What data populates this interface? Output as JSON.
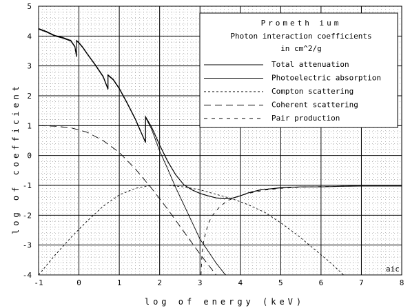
{
  "chart_data": {
    "type": "line",
    "title": "Prometh ium",
    "subtitle_lines": [
      "Photon interaction coefficients",
      "in cm^2/g"
    ],
    "xlabel": "log of energy (keV)",
    "ylabel": "log of coefficient",
    "credit": "aic",
    "xlim": [
      -1,
      8
    ],
    "ylim": [
      -4,
      5
    ],
    "x_ticks": [
      "-1",
      "0",
      "1",
      "2",
      "3",
      "4",
      "5",
      "6",
      "7",
      "8"
    ],
    "y_ticks": [
      "5",
      "4",
      "3",
      "2",
      "1",
      "0",
      "-1",
      "-2",
      "-3",
      "-4"
    ],
    "grid": true,
    "legend_position": "top-right",
    "series": [
      {
        "name": "Total attenuation",
        "dash": "solid",
        "x": [
          -1.0,
          -0.8,
          -0.6,
          -0.4,
          -0.2,
          -0.1,
          -0.06,
          -0.06,
          0.0,
          0.1,
          0.2,
          0.4,
          0.6,
          0.72,
          0.72,
          0.85,
          1.0,
          1.2,
          1.4,
          1.6,
          1.65,
          1.65,
          1.8,
          2.0,
          2.2,
          2.4,
          2.6,
          2.8,
          3.0,
          3.2,
          3.4,
          3.6,
          3.8,
          4.0,
          4.2,
          4.5,
          5.0,
          5.5,
          6.0,
          6.5,
          7.0,
          7.5,
          8.0
        ],
        "y": [
          4.25,
          4.15,
          4.02,
          3.95,
          3.85,
          3.65,
          3.32,
          3.85,
          3.78,
          3.62,
          3.42,
          3.05,
          2.65,
          2.23,
          2.7,
          2.55,
          2.25,
          1.75,
          1.22,
          0.6,
          0.45,
          1.3,
          0.95,
          0.35,
          -0.2,
          -0.65,
          -0.98,
          -1.15,
          -1.27,
          -1.35,
          -1.42,
          -1.45,
          -1.43,
          -1.35,
          -1.25,
          -1.15,
          -1.08,
          -1.05,
          -1.05,
          -1.03,
          -1.02,
          -1.02,
          -1.02
        ]
      },
      {
        "name": "Photoelectric absorption",
        "dash": "solid",
        "x": [
          -1.0,
          -0.8,
          -0.6,
          -0.4,
          -0.2,
          -0.1,
          -0.06,
          -0.06,
          0.0,
          0.1,
          0.2,
          0.4,
          0.6,
          0.72,
          0.72,
          0.85,
          1.0,
          1.2,
          1.4,
          1.6,
          1.65,
          1.65,
          1.8,
          2.0,
          2.2,
          2.4,
          2.6,
          2.8,
          3.0,
          3.2,
          3.4,
          3.6,
          3.8,
          4.0,
          4.2
        ],
        "y": [
          4.23,
          4.13,
          4.0,
          3.93,
          3.83,
          3.63,
          3.3,
          3.83,
          3.76,
          3.6,
          3.4,
          3.03,
          2.63,
          2.21,
          2.68,
          2.53,
          2.23,
          1.73,
          1.2,
          0.58,
          0.43,
          1.28,
          0.88,
          0.15,
          -0.45,
          -1.08,
          -1.65,
          -2.22,
          -2.8,
          -3.2,
          -3.6,
          -3.95,
          -4.2,
          -4.5,
          -4.8
        ]
      },
      {
        "name": "Compton scattering",
        "dash": "short",
        "x": [
          -1.0,
          -0.6,
          -0.2,
          0.2,
          0.6,
          1.0,
          1.4,
          1.8,
          2.2,
          2.6,
          3.0,
          3.4,
          3.8,
          4.2,
          4.6,
          5.0,
          5.4,
          5.8,
          6.2,
          6.6
        ],
        "y": [
          -4.0,
          -3.35,
          -2.75,
          -2.2,
          -1.7,
          -1.32,
          -1.1,
          -1.0,
          -1.0,
          -1.05,
          -1.15,
          -1.3,
          -1.45,
          -1.65,
          -1.9,
          -2.25,
          -2.65,
          -3.1,
          -3.55,
          -4.05
        ]
      },
      {
        "name": "Coherent scattering",
        "dash": "long",
        "x": [
          -1.0,
          -0.6,
          -0.2,
          0.2,
          0.6,
          1.0,
          1.4,
          1.8,
          2.2,
          2.6,
          3.0,
          3.4,
          3.7
        ],
        "y": [
          1.0,
          0.98,
          0.93,
          0.78,
          0.5,
          0.1,
          -0.45,
          -1.1,
          -1.8,
          -2.55,
          -3.3,
          -4.0,
          -4.5
        ]
      },
      {
        "name": "Pair production",
        "dash": "medium",
        "x": [
          3.01,
          3.05,
          3.1,
          3.2,
          3.3,
          3.5,
          3.7,
          4.0,
          4.3,
          4.6,
          5.0,
          5.5,
          6.0,
          6.5,
          7.0,
          7.5,
          8.0
        ],
        "y": [
          -4.5,
          -3.3,
          -2.8,
          -2.3,
          -2.02,
          -1.7,
          -1.5,
          -1.34,
          -1.24,
          -1.16,
          -1.1,
          -1.06,
          -1.04,
          -1.03,
          -1.02,
          -1.02,
          -1.02
        ]
      }
    ]
  }
}
